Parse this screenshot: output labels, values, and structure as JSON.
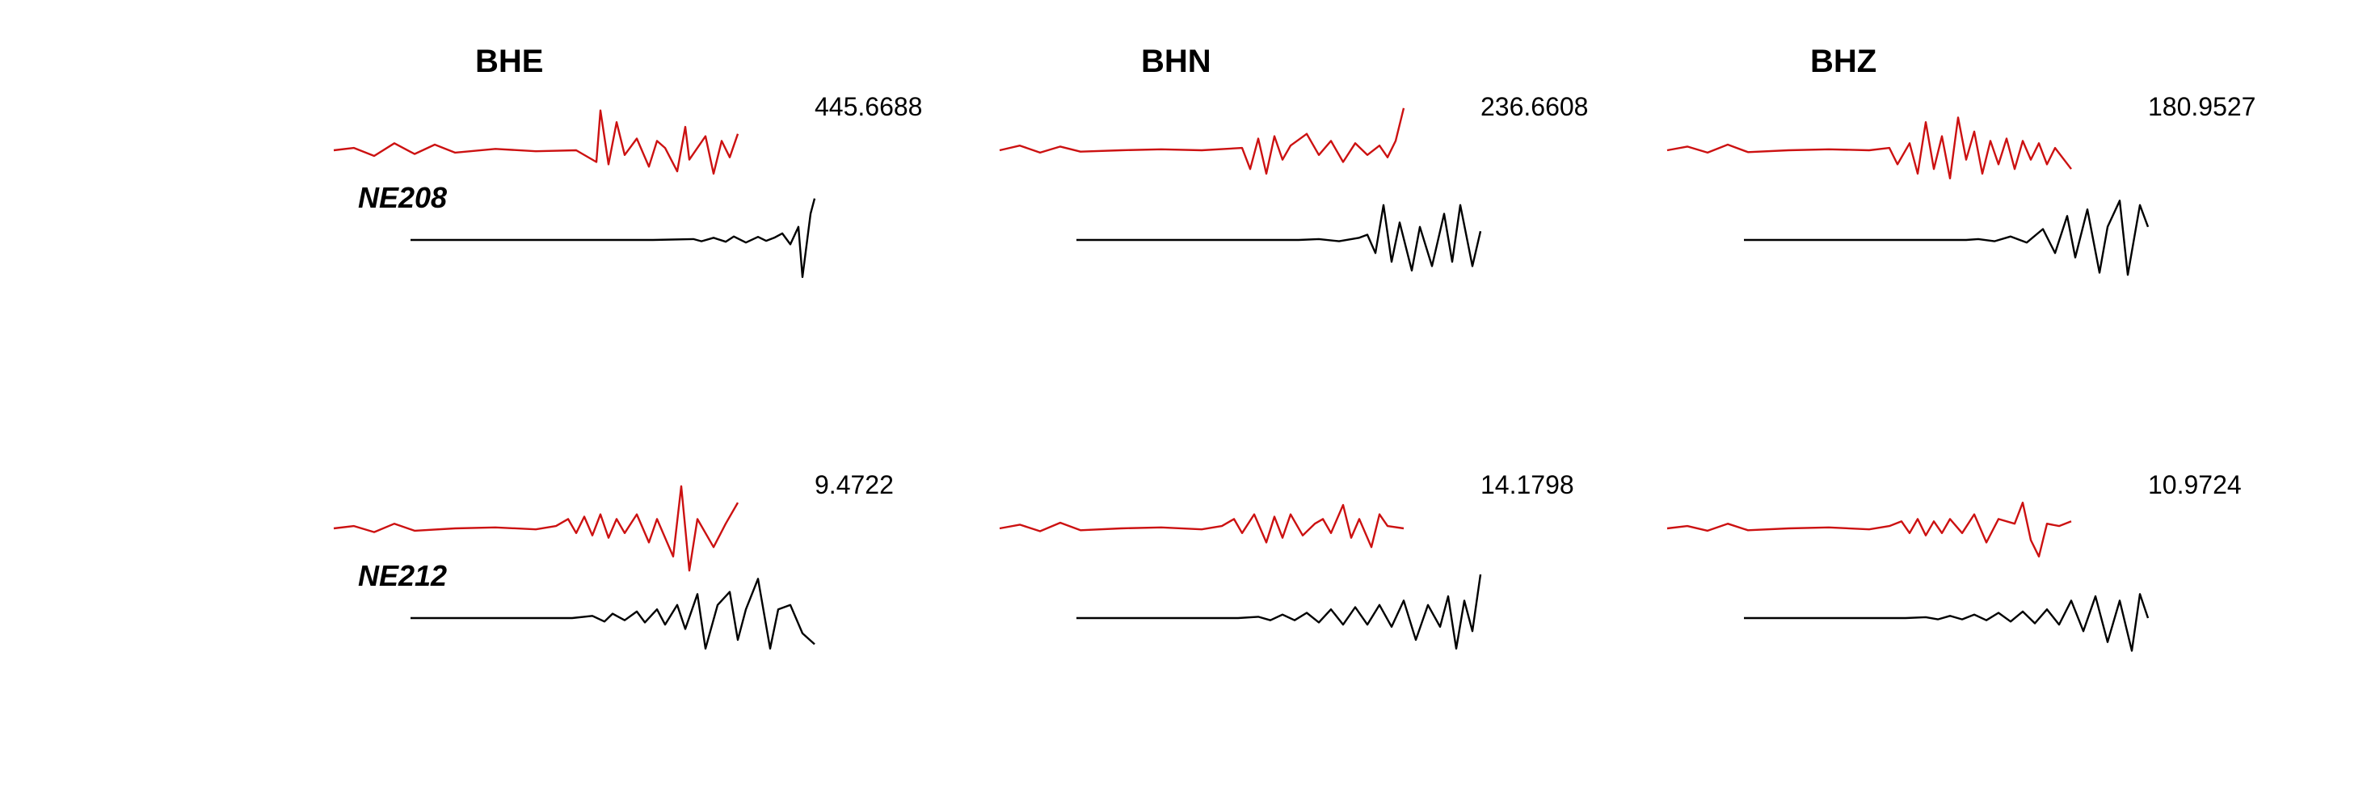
{
  "chart_data": {
    "type": "line",
    "columns": [
      "BHE",
      "BHN",
      "BHZ"
    ],
    "rows": [
      {
        "station": "NE208",
        "amplitudes": [
          "445.6688",
          "236.6608",
          "180.9527"
        ]
      },
      {
        "station": "NE212",
        "amplitudes": [
          "9.4722",
          "14.1798",
          "10.9724"
        ]
      }
    ],
    "series": [
      {
        "color": "#cc1111"
      },
      {
        "color": "#000000"
      }
    ],
    "traces": [
      {
        "red": [
          [
            0,
            0
          ],
          [
            0.05,
            0.05
          ],
          [
            0.1,
            -0.12
          ],
          [
            0.15,
            0.15
          ],
          [
            0.2,
            -0.08
          ],
          [
            0.25,
            0.12
          ],
          [
            0.3,
            -0.05
          ],
          [
            0.4,
            0.03
          ],
          [
            0.5,
            -0.02
          ],
          [
            0.6,
            0.0
          ],
          [
            0.65,
            -0.25
          ],
          [
            0.66,
            0.85
          ],
          [
            0.68,
            -0.3
          ],
          [
            0.7,
            0.6
          ],
          [
            0.72,
            -0.1
          ],
          [
            0.75,
            0.25
          ],
          [
            0.78,
            -0.35
          ],
          [
            0.8,
            0.2
          ],
          [
            0.82,
            0.05
          ],
          [
            0.85,
            -0.45
          ],
          [
            0.87,
            0.5
          ],
          [
            0.88,
            -0.2
          ],
          [
            0.9,
            0.05
          ],
          [
            0.92,
            0.3
          ],
          [
            0.94,
            -0.5
          ],
          [
            0.96,
            0.2
          ],
          [
            0.98,
            -0.15
          ],
          [
            1.0,
            0.35
          ]
        ],
        "black": [
          [
            0,
            0
          ],
          [
            0.2,
            0.0
          ],
          [
            0.4,
            0.0
          ],
          [
            0.6,
            0.0
          ],
          [
            0.7,
            0.02
          ],
          [
            0.72,
            -0.03
          ],
          [
            0.75,
            0.05
          ],
          [
            0.78,
            -0.04
          ],
          [
            0.8,
            0.08
          ],
          [
            0.83,
            -0.06
          ],
          [
            0.86,
            0.07
          ],
          [
            0.88,
            -0.02
          ],
          [
            0.9,
            0.05
          ],
          [
            0.92,
            0.15
          ],
          [
            0.94,
            -0.1
          ],
          [
            0.96,
            0.3
          ],
          [
            0.97,
            -0.85
          ],
          [
            0.99,
            0.6
          ],
          [
            1.0,
            0.95
          ]
        ]
      },
      {
        "red": [
          [
            0,
            0
          ],
          [
            0.05,
            0.1
          ],
          [
            0.1,
            -0.05
          ],
          [
            0.15,
            0.08
          ],
          [
            0.2,
            -0.03
          ],
          [
            0.3,
            0.0
          ],
          [
            0.4,
            0.02
          ],
          [
            0.5,
            0.0
          ],
          [
            0.6,
            0.05
          ],
          [
            0.62,
            -0.4
          ],
          [
            0.64,
            0.25
          ],
          [
            0.66,
            -0.5
          ],
          [
            0.68,
            0.3
          ],
          [
            0.7,
            -0.2
          ],
          [
            0.72,
            0.1
          ],
          [
            0.76,
            0.35
          ],
          [
            0.79,
            -0.1
          ],
          [
            0.82,
            0.2
          ],
          [
            0.85,
            -0.25
          ],
          [
            0.88,
            0.15
          ],
          [
            0.91,
            -0.1
          ],
          [
            0.94,
            0.1
          ],
          [
            0.96,
            -0.15
          ],
          [
            0.98,
            0.2
          ],
          [
            1.0,
            0.9
          ]
        ],
        "black": [
          [
            0,
            0
          ],
          [
            0.2,
            0.0
          ],
          [
            0.4,
            0.0
          ],
          [
            0.55,
            0.0
          ],
          [
            0.6,
            0.02
          ],
          [
            0.65,
            -0.03
          ],
          [
            0.7,
            0.05
          ],
          [
            0.72,
            0.12
          ],
          [
            0.74,
            -0.3
          ],
          [
            0.76,
            0.8
          ],
          [
            0.78,
            -0.5
          ],
          [
            0.8,
            0.4
          ],
          [
            0.83,
            -0.7
          ],
          [
            0.85,
            0.3
          ],
          [
            0.88,
            -0.6
          ],
          [
            0.91,
            0.6
          ],
          [
            0.93,
            -0.5
          ],
          [
            0.95,
            0.8
          ],
          [
            0.98,
            -0.6
          ],
          [
            1.0,
            0.2
          ]
        ]
      },
      {
        "red": [
          [
            0,
            0
          ],
          [
            0.05,
            0.08
          ],
          [
            0.1,
            -0.05
          ],
          [
            0.15,
            0.12
          ],
          [
            0.2,
            -0.04
          ],
          [
            0.3,
            0.0
          ],
          [
            0.4,
            0.02
          ],
          [
            0.5,
            0.0
          ],
          [
            0.55,
            0.05
          ],
          [
            0.57,
            -0.3
          ],
          [
            0.6,
            0.15
          ],
          [
            0.62,
            -0.5
          ],
          [
            0.64,
            0.6
          ],
          [
            0.66,
            -0.4
          ],
          [
            0.68,
            0.3
          ],
          [
            0.7,
            -0.6
          ],
          [
            0.72,
            0.7
          ],
          [
            0.74,
            -0.2
          ],
          [
            0.76,
            0.4
          ],
          [
            0.78,
            -0.5
          ],
          [
            0.8,
            0.2
          ],
          [
            0.82,
            -0.3
          ],
          [
            0.84,
            0.25
          ],
          [
            0.86,
            -0.4
          ],
          [
            0.88,
            0.2
          ],
          [
            0.9,
            -0.2
          ],
          [
            0.92,
            0.15
          ],
          [
            0.94,
            -0.3
          ],
          [
            0.96,
            0.05
          ],
          [
            1.0,
            -0.4
          ]
        ],
        "black": [
          [
            0,
            0
          ],
          [
            0.2,
            0.0
          ],
          [
            0.4,
            0.0
          ],
          [
            0.55,
            0.0
          ],
          [
            0.58,
            0.02
          ],
          [
            0.62,
            -0.03
          ],
          [
            0.66,
            0.08
          ],
          [
            0.7,
            -0.06
          ],
          [
            0.74,
            0.25
          ],
          [
            0.77,
            -0.3
          ],
          [
            0.8,
            0.55
          ],
          [
            0.82,
            -0.4
          ],
          [
            0.85,
            0.7
          ],
          [
            0.88,
            -0.75
          ],
          [
            0.9,
            0.3
          ],
          [
            0.93,
            0.9
          ],
          [
            0.95,
            -0.8
          ],
          [
            0.98,
            0.8
          ],
          [
            1.0,
            0.3
          ]
        ]
      },
      {
        "red": [
          [
            0,
            0
          ],
          [
            0.05,
            0.05
          ],
          [
            0.1,
            -0.08
          ],
          [
            0.15,
            0.1
          ],
          [
            0.2,
            -0.05
          ],
          [
            0.3,
            0.0
          ],
          [
            0.4,
            0.02
          ],
          [
            0.5,
            -0.02
          ],
          [
            0.55,
            0.05
          ],
          [
            0.58,
            0.2
          ],
          [
            0.6,
            -0.1
          ],
          [
            0.62,
            0.25
          ],
          [
            0.64,
            -0.15
          ],
          [
            0.66,
            0.3
          ],
          [
            0.68,
            -0.2
          ],
          [
            0.7,
            0.2
          ],
          [
            0.72,
            -0.1
          ],
          [
            0.75,
            0.3
          ],
          [
            0.78,
            -0.3
          ],
          [
            0.8,
            0.2
          ],
          [
            0.84,
            -0.6
          ],
          [
            0.86,
            0.9
          ],
          [
            0.88,
            -0.9
          ],
          [
            0.9,
            0.2
          ],
          [
            0.94,
            -0.4
          ],
          [
            0.97,
            0.1
          ],
          [
            1.0,
            0.55
          ]
        ],
        "black": [
          [
            0,
            0
          ],
          [
            0.2,
            0.0
          ],
          [
            0.4,
            0.0
          ],
          [
            0.45,
            0.05
          ],
          [
            0.48,
            -0.08
          ],
          [
            0.5,
            0.1
          ],
          [
            0.53,
            -0.05
          ],
          [
            0.56,
            0.15
          ],
          [
            0.58,
            -0.1
          ],
          [
            0.61,
            0.2
          ],
          [
            0.63,
            -0.15
          ],
          [
            0.66,
            0.3
          ],
          [
            0.68,
            -0.25
          ],
          [
            0.71,
            0.55
          ],
          [
            0.73,
            -0.7
          ],
          [
            0.76,
            0.3
          ],
          [
            0.79,
            0.6
          ],
          [
            0.81,
            -0.5
          ],
          [
            0.83,
            0.2
          ],
          [
            0.86,
            0.9
          ],
          [
            0.89,
            -0.7
          ],
          [
            0.91,
            0.2
          ],
          [
            0.94,
            0.3
          ],
          [
            0.97,
            -0.35
          ],
          [
            1.0,
            -0.6
          ]
        ]
      },
      {
        "red": [
          [
            0,
            0
          ],
          [
            0.05,
            0.08
          ],
          [
            0.1,
            -0.06
          ],
          [
            0.15,
            0.12
          ],
          [
            0.2,
            -0.04
          ],
          [
            0.3,
            0.0
          ],
          [
            0.4,
            0.02
          ],
          [
            0.5,
            -0.02
          ],
          [
            0.55,
            0.05
          ],
          [
            0.58,
            0.2
          ],
          [
            0.6,
            -0.1
          ],
          [
            0.63,
            0.3
          ],
          [
            0.66,
            -0.3
          ],
          [
            0.68,
            0.25
          ],
          [
            0.7,
            -0.2
          ],
          [
            0.72,
            0.3
          ],
          [
            0.75,
            -0.15
          ],
          [
            0.78,
            0.1
          ],
          [
            0.8,
            0.2
          ],
          [
            0.82,
            -0.1
          ],
          [
            0.85,
            0.5
          ],
          [
            0.87,
            -0.2
          ],
          [
            0.89,
            0.2
          ],
          [
            0.92,
            -0.4
          ],
          [
            0.94,
            0.3
          ],
          [
            0.96,
            0.05
          ],
          [
            1.0,
            0.0
          ]
        ],
        "black": [
          [
            0,
            0
          ],
          [
            0.2,
            0.0
          ],
          [
            0.4,
            0.0
          ],
          [
            0.45,
            0.03
          ],
          [
            0.48,
            -0.05
          ],
          [
            0.51,
            0.08
          ],
          [
            0.54,
            -0.05
          ],
          [
            0.57,
            0.12
          ],
          [
            0.6,
            -0.1
          ],
          [
            0.63,
            0.2
          ],
          [
            0.66,
            -0.15
          ],
          [
            0.69,
            0.25
          ],
          [
            0.72,
            -0.15
          ],
          [
            0.75,
            0.3
          ],
          [
            0.78,
            -0.2
          ],
          [
            0.81,
            0.4
          ],
          [
            0.84,
            -0.5
          ],
          [
            0.87,
            0.3
          ],
          [
            0.9,
            -0.2
          ],
          [
            0.92,
            0.5
          ],
          [
            0.94,
            -0.7
          ],
          [
            0.96,
            0.4
          ],
          [
            0.98,
            -0.3
          ],
          [
            1.0,
            1.0
          ]
        ]
      },
      {
        "red": [
          [
            0,
            0
          ],
          [
            0.05,
            0.05
          ],
          [
            0.1,
            -0.05
          ],
          [
            0.15,
            0.1
          ],
          [
            0.2,
            -0.04
          ],
          [
            0.3,
            0.0
          ],
          [
            0.4,
            0.02
          ],
          [
            0.5,
            -0.02
          ],
          [
            0.55,
            0.05
          ],
          [
            0.58,
            0.15
          ],
          [
            0.6,
            -0.1
          ],
          [
            0.62,
            0.2
          ],
          [
            0.64,
            -0.15
          ],
          [
            0.66,
            0.15
          ],
          [
            0.68,
            -0.1
          ],
          [
            0.7,
            0.2
          ],
          [
            0.73,
            -0.1
          ],
          [
            0.76,
            0.3
          ],
          [
            0.79,
            -0.3
          ],
          [
            0.82,
            0.2
          ],
          [
            0.86,
            0.1
          ],
          [
            0.88,
            0.55
          ],
          [
            0.9,
            -0.25
          ],
          [
            0.92,
            -0.6
          ],
          [
            0.94,
            0.1
          ],
          [
            0.97,
            0.05
          ],
          [
            1.0,
            0.15
          ]
        ],
        "black": [
          [
            0,
            0
          ],
          [
            0.2,
            0.0
          ],
          [
            0.4,
            0.0
          ],
          [
            0.45,
            0.02
          ],
          [
            0.48,
            -0.03
          ],
          [
            0.51,
            0.05
          ],
          [
            0.54,
            -0.03
          ],
          [
            0.57,
            0.08
          ],
          [
            0.6,
            -0.05
          ],
          [
            0.63,
            0.12
          ],
          [
            0.66,
            -0.08
          ],
          [
            0.69,
            0.15
          ],
          [
            0.72,
            -0.12
          ],
          [
            0.75,
            0.2
          ],
          [
            0.78,
            -0.15
          ],
          [
            0.81,
            0.4
          ],
          [
            0.84,
            -0.3
          ],
          [
            0.87,
            0.5
          ],
          [
            0.9,
            -0.55
          ],
          [
            0.93,
            0.4
          ],
          [
            0.96,
            -0.75
          ],
          [
            0.98,
            0.55
          ],
          [
            1.0,
            0.0
          ]
        ]
      }
    ]
  }
}
